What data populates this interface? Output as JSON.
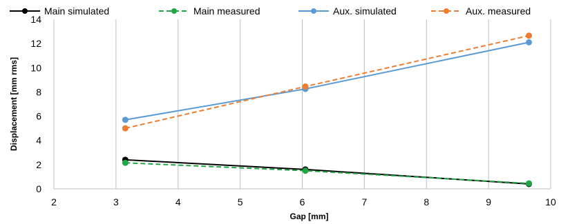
{
  "chart_data": {
    "type": "line",
    "title": "",
    "xlabel": "Gap   [mm]",
    "ylabel": "Displacement [mm rms]",
    "xlim": [
      2,
      10
    ],
    "ylim": [
      0,
      14
    ],
    "x_ticks": [
      2,
      3,
      4,
      5,
      6,
      7,
      8,
      9,
      10
    ],
    "y_ticks": [
      0,
      2,
      4,
      6,
      8,
      10,
      12,
      14
    ],
    "grid": "vertical",
    "legend_position": "top",
    "series": [
      {
        "name": "Main simulated",
        "color": "#000000",
        "dash": "solid",
        "marker": "circle",
        "x": [
          3.15,
          6.05,
          9.65
        ],
        "y": [
          2.4,
          1.6,
          0.4
        ]
      },
      {
        "name": "Main measured",
        "color": "#21a645",
        "dash": "dashed",
        "marker": "circle",
        "x": [
          3.15,
          6.05,
          9.65
        ],
        "y": [
          2.15,
          1.5,
          0.45
        ]
      },
      {
        "name": "Aux. simulated",
        "color": "#5b9bd5",
        "dash": "solid",
        "marker": "circle",
        "x": [
          3.15,
          6.05,
          9.65
        ],
        "y": [
          5.7,
          8.25,
          12.1
        ]
      },
      {
        "name": "Aux. measured",
        "color": "#ed7d31",
        "dash": "dashed",
        "marker": "circle",
        "x": [
          3.15,
          6.05,
          9.65
        ],
        "y": [
          5.0,
          8.45,
          12.65
        ]
      }
    ]
  }
}
